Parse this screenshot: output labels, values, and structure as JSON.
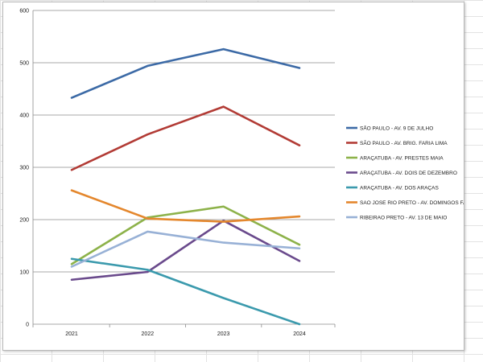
{
  "chart_data": {
    "type": "line",
    "categories": [
      "2021",
      "2022",
      "2023",
      "2024"
    ],
    "ylim": [
      0,
      600
    ],
    "yticks": [
      "0",
      "100",
      "200",
      "300",
      "400",
      "500",
      "600"
    ],
    "grid": "horizontal",
    "legend_position": "right",
    "series": [
      {
        "name": "SÃO PAULO - AV. 9 DE JULHO",
        "color": "#3c6aa6",
        "values": [
          433,
          494,
          526,
          490
        ]
      },
      {
        "name": "SÃO PAULO - AV. BRIG. FARIA LIMA",
        "color": "#b23b35",
        "values": [
          295,
          363,
          416,
          342
        ]
      },
      {
        "name": "ARAÇATUBA - AV. PRESTES MAIA",
        "color": "#8db24a",
        "values": [
          115,
          204,
          225,
          152
        ]
      },
      {
        "name": "ARAÇATUBA - AV. DOIS DE DEZEMBRO",
        "color": "#6a4a8c",
        "values": [
          85,
          100,
          198,
          121
        ]
      },
      {
        "name": "ARAÇATUBA - AV. DOS ARAÇAS",
        "color": "#3b9aad",
        "values": [
          125,
          104,
          50,
          0
        ]
      },
      {
        "name": "SAO JOSE RIO PRETO - AV. DOMINGOS FALAVINA",
        "color": "#e4872d",
        "values": [
          256,
          202,
          196,
          206
        ]
      },
      {
        "name": "RIBEIRAO PRETO - AV. 13 DE MAIO",
        "color": "#98b1d6",
        "values": [
          110,
          177,
          156,
          145
        ]
      }
    ]
  }
}
